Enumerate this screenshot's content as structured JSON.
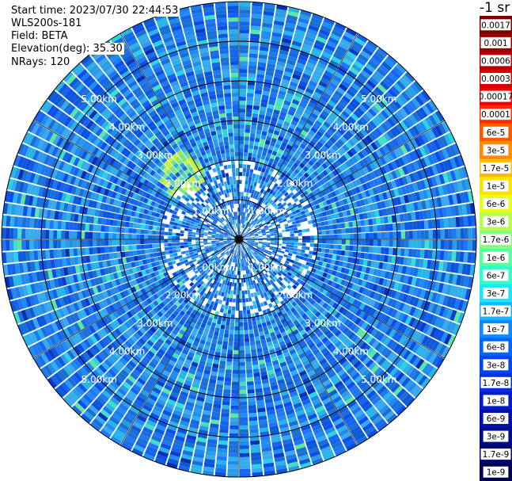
{
  "header": {
    "start_time": "Start time: 2023/07/30 22:44:53",
    "device": "WLS200s-181",
    "field": "Field: BETA",
    "elevation": "Elevation(deg): 35.30",
    "nrays": "NRays: 120"
  },
  "colorbar": {
    "title": "-1 sr",
    "ticks": [
      "0.0017",
      "0.001",
      "0.0006",
      "0.0003",
      "0.00017",
      "0.0001",
      "6e-5",
      "3e-5",
      "1.7e-5",
      "1e-5",
      "6e-6",
      "3e-6",
      "1.7e-6",
      "1e-6",
      "6e-7",
      "3e-7",
      "1.7e-7",
      "1e-7",
      "6e-8",
      "3e-8",
      "1.7e-8",
      "1e-8",
      "6e-9",
      "3e-9",
      "1.7e-9",
      "1e-9"
    ],
    "colors": [
      "#7a0000",
      "#9a0000",
      "#b80000",
      "#d80000",
      "#f00000",
      "#ff2a00",
      "#ff5a00",
      "#ff8c00",
      "#ffbb00",
      "#ffe100",
      "#e6ff1a",
      "#b5ff4a",
      "#85ff7a",
      "#5bffa3",
      "#33ffcc",
      "#1ae6ff",
      "#1ab4ff",
      "#0a8cff",
      "#0064ff",
      "#0046f0",
      "#0030e0",
      "#001cc8",
      "#0010a8",
      "#000a8a",
      "#00066c",
      "#000050"
    ]
  },
  "chart_data": {
    "type": "heatmap",
    "projection": "polar (PPI scan)",
    "field": "BETA",
    "n_rays": 120,
    "elevation_deg": 35.3,
    "max_range_km": 6.0,
    "rings_km": [
      1.0,
      2.0,
      3.0,
      4.0,
      5.0
    ],
    "ring_labels": [
      "1.00km",
      "2.00km",
      "3.00km",
      "4.00km",
      "5.00km"
    ],
    "spoke_angles_deg": [
      0,
      30,
      60,
      90,
      120,
      150,
      180,
      210,
      240,
      270,
      300,
      330
    ],
    "dominant_value_range": [
      "1e-8",
      "1e-7"
    ],
    "notable_feature": "Patch of higher values (~1e-6 to 3e-6) near 2.5 km, NW sector",
    "colors": {
      "background_typical": "#1e78e6",
      "ring_lines": "#000000",
      "ray_gaps": "#ffffff"
    }
  }
}
